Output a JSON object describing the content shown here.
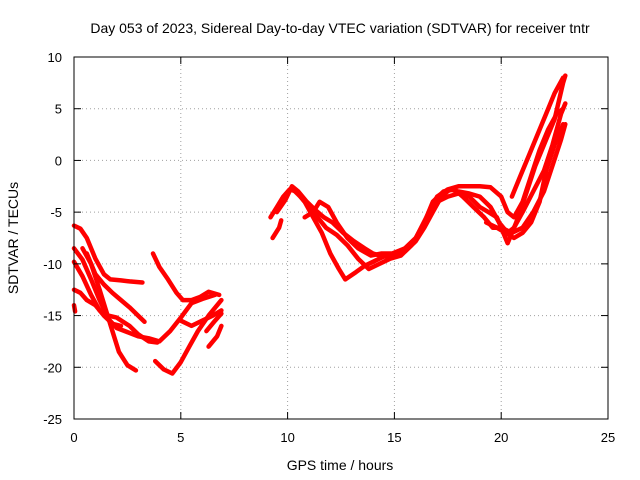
{
  "chart_data": {
    "type": "scatter",
    "title": "Day 053 of 2023, Sidereal Day-to-day VTEC variation (SDTVAR) for receiver tntr",
    "xlabel": "GPS time / hours",
    "ylabel": "SDTVAR / TECUs",
    "xlim": [
      0,
      25
    ],
    "ylim": [
      -25,
      10
    ],
    "xticks": [
      0,
      5,
      10,
      15,
      20,
      25
    ],
    "yticks": [
      -25,
      -20,
      -15,
      -10,
      -5,
      0,
      5,
      10
    ],
    "grid": true,
    "color": "#ff0000",
    "series": [
      {
        "points": [
          [
            0.0,
            -6.3
          ],
          [
            0.3,
            -6.6
          ],
          [
            0.6,
            -7.5
          ],
          [
            1.0,
            -9.5
          ],
          [
            1.4,
            -11.0
          ],
          [
            1.7,
            -11.5
          ],
          [
            2.2,
            -11.6
          ],
          [
            2.6,
            -11.7
          ],
          [
            3.2,
            -11.8
          ]
        ]
      },
      {
        "points": [
          [
            0.0,
            -8.5
          ],
          [
            0.4,
            -9.6
          ],
          [
            0.8,
            -11.5
          ],
          [
            1.2,
            -13.5
          ],
          [
            1.6,
            -15.3
          ],
          [
            2.0,
            -16.2
          ],
          [
            2.5,
            -16.6
          ],
          [
            3.0,
            -17.0
          ],
          [
            3.5,
            -17.2
          ],
          [
            4.0,
            -17.5
          ],
          [
            4.5,
            -16.5
          ],
          [
            5.0,
            -15.2
          ],
          [
            5.5,
            -13.8
          ],
          [
            6.0,
            -13.4
          ],
          [
            6.6,
            -13.0
          ]
        ]
      },
      {
        "points": [
          [
            0.0,
            -9.8
          ],
          [
            0.4,
            -11.2
          ],
          [
            0.8,
            -13.0
          ],
          [
            1.2,
            -14.5
          ],
          [
            1.6,
            -15.0
          ],
          [
            2.0,
            -15.2
          ],
          [
            2.6,
            -16.0
          ],
          [
            3.0,
            -16.8
          ],
          [
            3.5,
            -17.5
          ],
          [
            3.9,
            -17.6
          ]
        ]
      },
      {
        "points": [
          [
            0.0,
            -12.5
          ],
          [
            0.3,
            -12.8
          ],
          [
            0.6,
            -13.5
          ],
          [
            1.0,
            -14.0
          ],
          [
            1.4,
            -15.0
          ],
          [
            1.8,
            -15.8
          ],
          [
            2.2,
            -16.0
          ]
        ]
      },
      {
        "points": [
          [
            0.0,
            -14.0
          ],
          [
            0.05,
            -14.6
          ]
        ]
      },
      {
        "points": [
          [
            0.4,
            -8.5
          ],
          [
            0.8,
            -10.0
          ],
          [
            1.2,
            -12.5
          ],
          [
            1.5,
            -14.5
          ],
          [
            1.8,
            -16.5
          ],
          [
            2.1,
            -18.5
          ],
          [
            2.5,
            -19.8
          ],
          [
            2.9,
            -20.3
          ]
        ]
      },
      {
        "points": [
          [
            0.6,
            -9.0
          ],
          [
            1.0,
            -11.0
          ],
          [
            1.4,
            -12.0
          ],
          [
            1.8,
            -12.8
          ],
          [
            2.2,
            -13.5
          ],
          [
            2.6,
            -14.2
          ],
          [
            3.0,
            -15.0
          ],
          [
            3.3,
            -15.6
          ]
        ]
      },
      {
        "points": [
          [
            3.7,
            -9.0
          ],
          [
            4.0,
            -10.3
          ],
          [
            4.4,
            -11.5
          ],
          [
            4.8,
            -12.8
          ],
          [
            5.1,
            -13.5
          ],
          [
            5.5,
            -13.5
          ],
          [
            5.9,
            -13.2
          ],
          [
            6.3,
            -12.7
          ],
          [
            6.8,
            -13.0
          ]
        ]
      },
      {
        "points": [
          [
            3.8,
            -19.4
          ],
          [
            4.2,
            -20.2
          ],
          [
            4.6,
            -20.6
          ],
          [
            5.0,
            -19.5
          ],
          [
            5.4,
            -18.0
          ],
          [
            5.8,
            -16.5
          ],
          [
            6.3,
            -15.0
          ],
          [
            6.9,
            -13.5
          ]
        ]
      },
      {
        "points": [
          [
            5.0,
            -15.5
          ],
          [
            5.5,
            -16.0
          ],
          [
            6.0,
            -15.5
          ],
          [
            6.5,
            -15.0
          ],
          [
            6.9,
            -14.5
          ]
        ]
      },
      {
        "points": [
          [
            6.2,
            -16.5
          ],
          [
            6.6,
            -15.5
          ],
          [
            6.9,
            -14.8
          ]
        ]
      },
      {
        "points": [
          [
            6.3,
            -18.0
          ],
          [
            6.7,
            -17.0
          ],
          [
            6.9,
            -16.0
          ]
        ]
      },
      {
        "points": [
          [
            9.3,
            -7.5
          ],
          [
            9.6,
            -6.5
          ],
          [
            9.7,
            -5.8
          ]
        ]
      },
      {
        "points": [
          [
            9.2,
            -5.5
          ],
          [
            9.5,
            -4.5
          ],
          [
            9.8,
            -3.5
          ],
          [
            10.1,
            -2.8
          ],
          [
            10.4,
            -3.0
          ],
          [
            10.8,
            -4.0
          ],
          [
            11.2,
            -5.5
          ],
          [
            11.6,
            -7.0
          ],
          [
            12.0,
            -9.0
          ],
          [
            12.4,
            -10.5
          ],
          [
            12.7,
            -11.5
          ],
          [
            13.2,
            -10.8
          ],
          [
            13.6,
            -10.2
          ],
          [
            14.0,
            -9.8
          ],
          [
            14.5,
            -9.3
          ],
          [
            15.0,
            -9.0
          ],
          [
            15.5,
            -8.5
          ],
          [
            16.0,
            -7.5
          ],
          [
            16.5,
            -5.5
          ],
          [
            17.0,
            -3.5
          ],
          [
            17.5,
            -2.8
          ],
          [
            18.0,
            -2.5
          ],
          [
            18.5,
            -2.5
          ],
          [
            19.0,
            -2.5
          ],
          [
            19.5,
            -2.6
          ],
          [
            20.0,
            -3.5
          ],
          [
            20.3,
            -5.0
          ],
          [
            20.6,
            -5.5
          ],
          [
            21.0,
            -4.0
          ],
          [
            21.4,
            -1.5
          ],
          [
            21.8,
            1.0
          ],
          [
            22.2,
            3.0
          ],
          [
            22.6,
            4.5
          ],
          [
            22.9,
            5.0
          ]
        ]
      },
      {
        "points": [
          [
            9.5,
            -5.0
          ],
          [
            9.9,
            -3.8
          ],
          [
            10.2,
            -2.5
          ],
          [
            10.5,
            -3.0
          ],
          [
            10.9,
            -4.0
          ],
          [
            11.3,
            -4.8
          ],
          [
            11.7,
            -5.5
          ],
          [
            12.1,
            -6.0
          ],
          [
            12.6,
            -7.0
          ],
          [
            13.1,
            -7.8
          ],
          [
            13.6,
            -8.5
          ],
          [
            14.0,
            -9.0
          ],
          [
            14.5,
            -9.3
          ],
          [
            15.0,
            -9.1
          ],
          [
            15.5,
            -8.8
          ],
          [
            16.0,
            -7.8
          ],
          [
            16.4,
            -6.5
          ],
          [
            16.8,
            -5.0
          ],
          [
            17.2,
            -3.5
          ],
          [
            17.6,
            -2.8
          ],
          [
            18.0,
            -3.0
          ],
          [
            18.5,
            -3.2
          ],
          [
            19.0,
            -3.5
          ],
          [
            19.5,
            -4.5
          ],
          [
            19.9,
            -6.0
          ],
          [
            20.3,
            -7.0
          ],
          [
            20.6,
            -6.5
          ],
          [
            21.0,
            -5.0
          ],
          [
            21.5,
            -3.0
          ],
          [
            22.0,
            -1.0
          ],
          [
            22.4,
            1.5
          ],
          [
            22.8,
            4.5
          ],
          [
            23.0,
            5.5
          ]
        ]
      },
      {
        "points": [
          [
            10.2,
            -2.7
          ],
          [
            10.6,
            -3.5
          ],
          [
            11.0,
            -4.5
          ],
          [
            11.4,
            -5.5
          ],
          [
            11.8,
            -6.5
          ],
          [
            12.3,
            -7.2
          ],
          [
            12.8,
            -8.2
          ],
          [
            13.3,
            -9.5
          ],
          [
            13.8,
            -10.5
          ],
          [
            14.3,
            -10.0
          ],
          [
            14.8,
            -9.5
          ],
          [
            15.3,
            -9.2
          ],
          [
            15.8,
            -8.2
          ],
          [
            16.2,
            -7.0
          ],
          [
            16.6,
            -5.5
          ],
          [
            17.0,
            -4.0
          ],
          [
            17.5,
            -3.5
          ],
          [
            18.0,
            -3.2
          ],
          [
            18.5,
            -3.5
          ],
          [
            19.0,
            -4.5
          ],
          [
            19.4,
            -5.0
          ],
          [
            19.8,
            -5.5
          ],
          [
            20.3,
            -8.0
          ],
          [
            20.7,
            -6.0
          ],
          [
            21.2,
            -3.0
          ],
          [
            21.6,
            -0.5
          ],
          [
            22.1,
            2.0
          ],
          [
            22.5,
            4.0
          ],
          [
            22.9,
            7.5
          ],
          [
            23.0,
            8.2
          ]
        ]
      },
      {
        "points": [
          [
            10.8,
            -5.5
          ],
          [
            11.2,
            -5.0
          ],
          [
            11.5,
            -4.0
          ],
          [
            11.9,
            -4.5
          ],
          [
            12.3,
            -6.0
          ],
          [
            12.8,
            -7.5
          ],
          [
            13.3,
            -8.5
          ],
          [
            13.9,
            -9.2
          ],
          [
            14.4,
            -9.0
          ],
          [
            14.9,
            -9.0
          ],
          [
            15.5,
            -8.5
          ],
          [
            16.0,
            -7.5
          ],
          [
            16.4,
            -6.0
          ],
          [
            16.8,
            -4.0
          ],
          [
            17.3,
            -3.0
          ],
          [
            17.8,
            -2.8
          ],
          [
            18.2,
            -3.5
          ],
          [
            18.7,
            -4.5
          ],
          [
            19.2,
            -5.5
          ],
          [
            19.6,
            -6.5
          ],
          [
            20.0,
            -6.5
          ],
          [
            20.5,
            -7.0
          ],
          [
            21.0,
            -6.5
          ],
          [
            21.5,
            -5.0
          ],
          [
            22.0,
            -3.0
          ],
          [
            22.4,
            -0.5
          ],
          [
            22.8,
            2.0
          ],
          [
            23.0,
            3.5
          ]
        ]
      },
      {
        "points": [
          [
            19.3,
            -6.0
          ],
          [
            19.8,
            -6.5
          ],
          [
            20.2,
            -7.0
          ],
          [
            20.6,
            -7.5
          ],
          [
            21.0,
            -7.0
          ],
          [
            21.4,
            -6.0
          ],
          [
            21.8,
            -4.0
          ],
          [
            22.1,
            -1.0
          ],
          [
            22.5,
            1.5
          ],
          [
            22.9,
            3.5
          ]
        ]
      },
      {
        "points": [
          [
            20.5,
            -3.5
          ],
          [
            20.9,
            -1.5
          ],
          [
            21.3,
            0.5
          ],
          [
            21.7,
            2.5
          ],
          [
            22.1,
            4.5
          ],
          [
            22.5,
            6.5
          ],
          [
            22.9,
            8.0
          ]
        ]
      }
    ]
  }
}
